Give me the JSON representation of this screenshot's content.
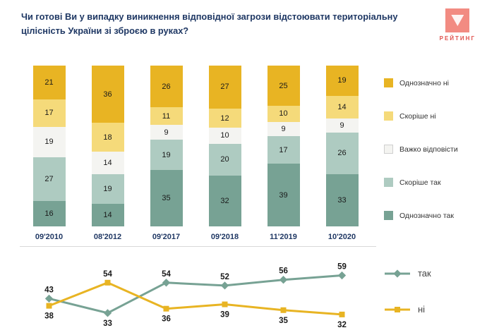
{
  "title": "Чи готові Ви у випадку виникнення відповідної загрози відстоювати територіальну цілісність України зі зброєю в руках?",
  "logo": {
    "text": "РЕЙТИНГ"
  },
  "colors": {
    "brand_pink": "#F28B82",
    "title_navy": "#1F3864"
  },
  "chart_data": [
    {
      "type": "bar",
      "stacked": true,
      "categories": [
        "09'2010",
        "08'2012",
        "09'2017",
        "09'2018",
        "11'2019",
        "10'2020"
      ],
      "series": [
        {
          "name": "Однозначно так",
          "color": "#77A294",
          "values": [
            16,
            14,
            35,
            32,
            39,
            33
          ]
        },
        {
          "name": "Скоріше так",
          "color": "#AECBC1",
          "values": [
            27,
            19,
            19,
            20,
            17,
            26
          ]
        },
        {
          "name": "Важко відповісти",
          "color": "#F4F4F1",
          "border": "#CFCFCF",
          "values": [
            19,
            14,
            9,
            10,
            9,
            9
          ]
        },
        {
          "name": "Скоріше ні",
          "color": "#F5DA7A",
          "values": [
            17,
            18,
            11,
            12,
            10,
            14
          ]
        },
        {
          "name": "Однозначно ні",
          "color": "#E8B423",
          "values": [
            21,
            36,
            26,
            27,
            25,
            19
          ]
        }
      ],
      "legend_position": "right",
      "value_labels": true,
      "ylim": [
        0,
        100
      ]
    },
    {
      "type": "line",
      "categories": [
        "09'2010",
        "08'2012",
        "09'2017",
        "09'2018",
        "11'2019",
        "10'2020"
      ],
      "series": [
        {
          "name": "так",
          "color": "#77A294",
          "marker": "diamond",
          "values": [
            43,
            33,
            54,
            52,
            56,
            59
          ]
        },
        {
          "name": "ні",
          "color": "#E8B423",
          "marker": "square",
          "values": [
            38,
            54,
            36,
            39,
            35,
            32
          ]
        }
      ],
      "ylim": [
        30,
        62
      ],
      "legend_position": "right"
    }
  ]
}
